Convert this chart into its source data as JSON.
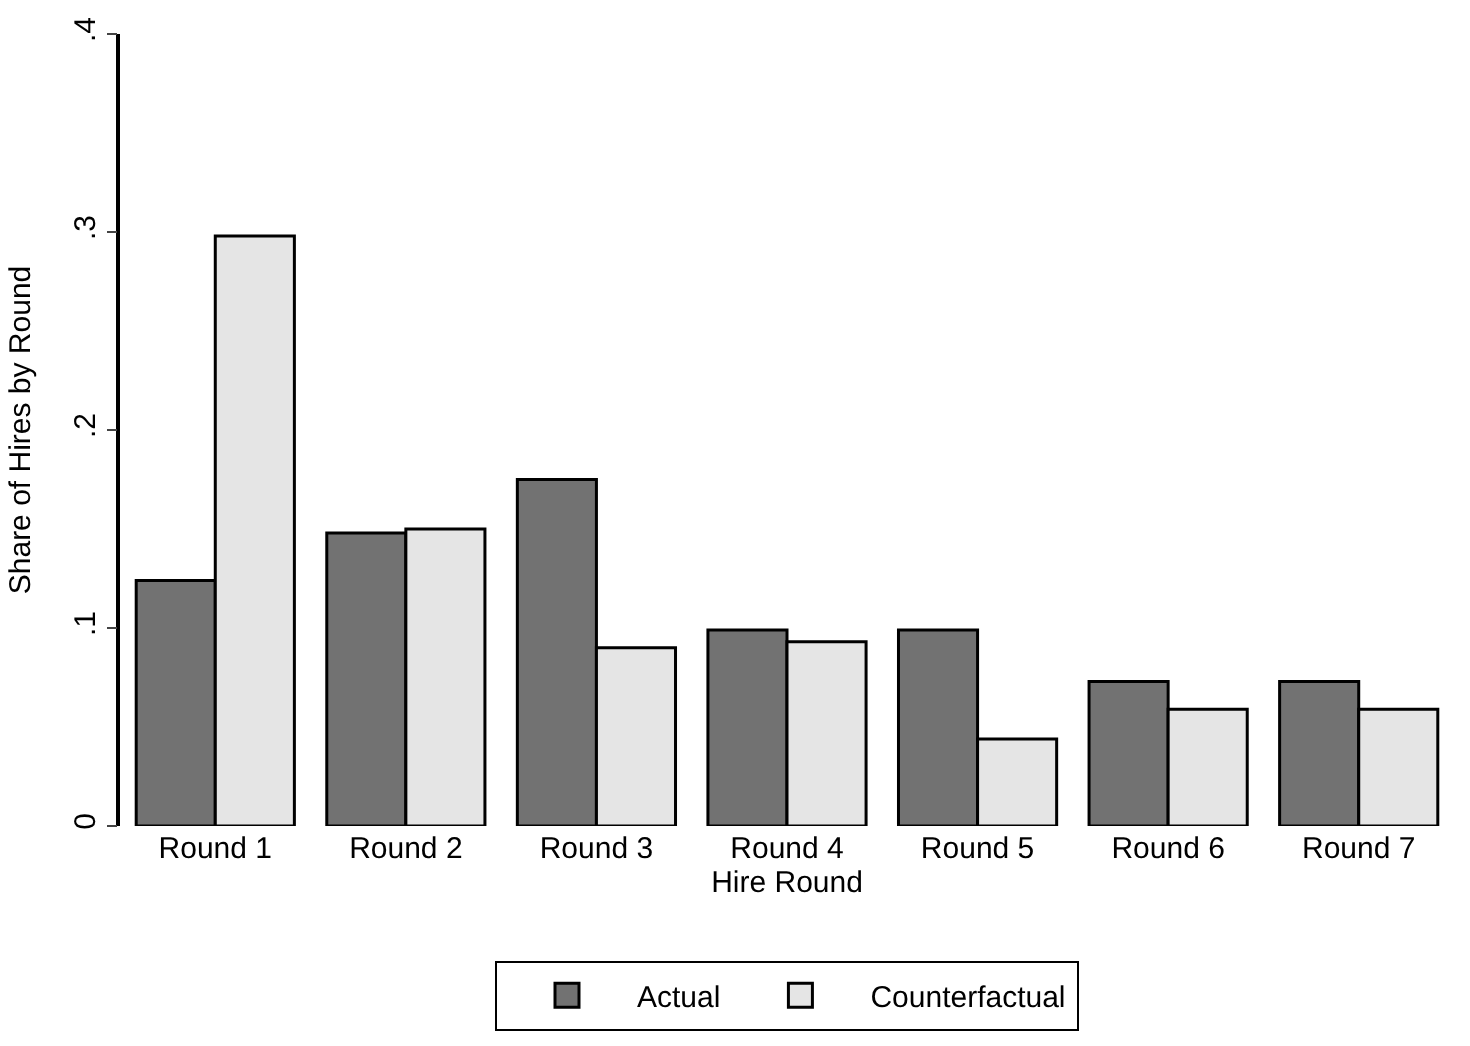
{
  "chart_data": {
    "type": "bar",
    "xlabel": "Hire Round",
    "ylabel": "Share of Hires by Round",
    "categories": [
      "Round 1",
      "Round 2",
      "Round 3",
      "Round 4",
      "Round 5",
      "Round 6",
      "Round 7"
    ],
    "series": [
      {
        "name": "Actual",
        "color": "#727272",
        "values": [
          0.124,
          0.148,
          0.175,
          0.099,
          0.099,
          0.073,
          0.073
        ]
      },
      {
        "name": "Counterfactual",
        "color": "#e5e5e5",
        "values": [
          0.298,
          0.15,
          0.09,
          0.093,
          0.044,
          0.059,
          0.059
        ]
      }
    ],
    "ylim": [
      0,
      0.4
    ],
    "yticks": [
      {
        "value": 0,
        "label": "0"
      },
      {
        "value": 0.1,
        "label": ".1"
      },
      {
        "value": 0.2,
        "label": ".2"
      },
      {
        "value": 0.3,
        "label": ".3"
      },
      {
        "value": 0.4,
        "label": ".4"
      }
    ],
    "legend": "bottom"
  }
}
